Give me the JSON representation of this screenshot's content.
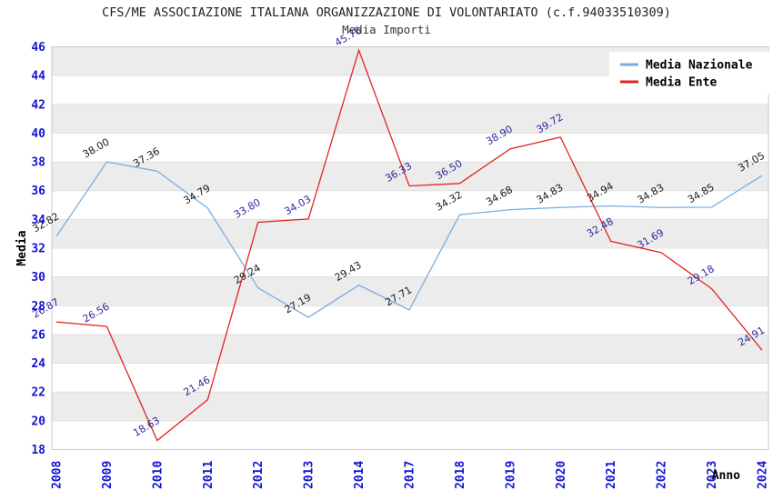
{
  "header": {
    "title": "CFS/ME ASSOCIAZIONE ITALIANA ORGANIZZAZIONE DI VOLONTARIATO (c.f.94033510309)",
    "subtitle": "Media Importi"
  },
  "chart_data": {
    "type": "line",
    "title": "CFS/ME ASSOCIAZIONE ITALIANA ORGANIZZAZIONE DI VOLONTARIATO (c.f.94033510309)",
    "subtitle": "Media Importi",
    "xlabel": "Anno",
    "ylabel": "Media",
    "categories": [
      "2008",
      "2009",
      "2010",
      "2011",
      "2012",
      "2013",
      "2014",
      "2017",
      "2018",
      "2019",
      "2020",
      "2021",
      "2022",
      "2023",
      "2024"
    ],
    "series": [
      {
        "name": "Media Nazionale",
        "color": "#79ade0",
        "label_color": "#1b1b1b",
        "values": [
          32.82,
          38.0,
          37.36,
          34.79,
          29.24,
          27.19,
          29.43,
          27.71,
          34.32,
          34.68,
          34.83,
          34.94,
          34.83,
          34.85,
          37.05
        ]
      },
      {
        "name": "Media Ente",
        "color": "#e32322",
        "label_color": "#2a2a9c",
        "values": [
          26.87,
          26.56,
          18.63,
          21.46,
          33.8,
          34.03,
          45.76,
          36.33,
          36.5,
          38.9,
          39.72,
          32.48,
          31.69,
          29.18,
          24.91
        ]
      }
    ],
    "ylim": [
      18,
      46
    ],
    "ytick_step": 2,
    "grid": "alternating horizontal gray bands every 2 units",
    "band_color": "#ececec",
    "gridline_color": "#e0e0e0",
    "border_color": "#c9c9c9",
    "tick_label_color": "#1414d4",
    "legend_position": "top-right",
    "point_labels_visible": true
  }
}
